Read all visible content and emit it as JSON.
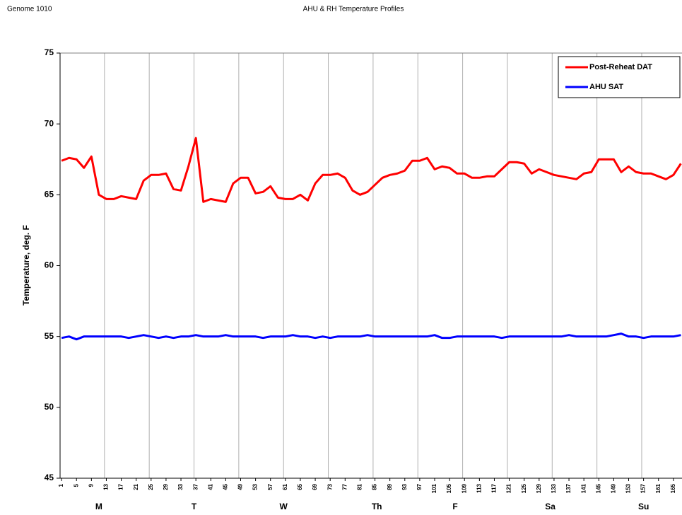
{
  "header": {
    "left": "Genome 1010"
  },
  "chart_data": {
    "type": "line",
    "title": "AHU & RH Temperature Profiles",
    "ylabel": "Temperature, deg. F",
    "x": [
      1,
      3,
      5,
      7,
      9,
      11,
      13,
      15,
      17,
      19,
      21,
      23,
      25,
      27,
      29,
      31,
      33,
      35,
      37,
      39,
      41,
      43,
      45,
      47,
      49,
      51,
      53,
      55,
      57,
      59,
      61,
      63,
      65,
      67,
      69,
      71,
      73,
      75,
      77,
      79,
      81,
      83,
      85,
      87,
      89,
      91,
      93,
      95,
      97,
      99,
      101,
      103,
      105,
      107,
      109,
      111,
      113,
      115,
      117,
      119,
      121,
      123,
      125,
      127,
      129,
      131,
      133,
      135,
      137,
      139,
      141,
      143,
      145,
      147,
      149,
      151,
      153,
      155,
      157,
      159,
      161,
      163,
      165,
      167
    ],
    "series": [
      {
        "name": "Post-Reheat DAT",
        "color": "#ff0000",
        "values": [
          67.4,
          67.6,
          67.5,
          66.9,
          67.7,
          65.0,
          64.7,
          64.7,
          64.9,
          64.8,
          64.7,
          66.0,
          66.4,
          66.4,
          66.5,
          65.4,
          65.3,
          67.0,
          69.0,
          64.5,
          64.7,
          64.6,
          64.5,
          65.8,
          66.2,
          66.2,
          65.1,
          65.2,
          65.6,
          64.8,
          64.7,
          64.7,
          65.0,
          64.6,
          65.8,
          66.4,
          66.4,
          66.5,
          66.2,
          65.3,
          65.0,
          65.2,
          65.7,
          66.2,
          66.4,
          66.5,
          66.7,
          67.4,
          67.4,
          67.6,
          66.8,
          67.0,
          66.9,
          66.5,
          66.5,
          66.2,
          66.2,
          66.3,
          66.3,
          66.8,
          67.3,
          67.3,
          67.2,
          66.5,
          66.8,
          66.6,
          66.4,
          66.3,
          66.2,
          66.1,
          66.5,
          66.6,
          67.5,
          67.5,
          67.5,
          66.6,
          67.0,
          66.6,
          66.5,
          66.5,
          66.3,
          66.1,
          66.4,
          67.2
        ]
      },
      {
        "name": "AHU SAT",
        "color": "#0000ff",
        "values": [
          54.9,
          55.0,
          54.8,
          55.0,
          55.0,
          55.0,
          55.0,
          55.0,
          55.0,
          54.9,
          55.0,
          55.1,
          55.0,
          54.9,
          55.0,
          54.9,
          55.0,
          55.0,
          55.1,
          55.0,
          55.0,
          55.0,
          55.1,
          55.0,
          55.0,
          55.0,
          55.0,
          54.9,
          55.0,
          55.0,
          55.0,
          55.1,
          55.0,
          55.0,
          54.9,
          55.0,
          54.9,
          55.0,
          55.0,
          55.0,
          55.0,
          55.1,
          55.0,
          55.0,
          55.0,
          55.0,
          55.0,
          55.0,
          55.0,
          55.0,
          55.1,
          54.9,
          54.9,
          55.0,
          55.0,
          55.0,
          55.0,
          55.0,
          55.0,
          54.9,
          55.0,
          55.0,
          55.0,
          55.0,
          55.0,
          55.0,
          55.0,
          55.0,
          55.1,
          55.0,
          55.0,
          55.0,
          55.0,
          55.0,
          55.1,
          55.2,
          55.0,
          55.0,
          54.9,
          55.0,
          55.0,
          55.0,
          55.0,
          55.1
        ]
      }
    ],
    "xlim": [
      0.6,
      167.3
    ],
    "xticks": [
      1,
      5,
      9,
      13,
      17,
      21,
      25,
      29,
      33,
      37,
      41,
      45,
      49,
      53,
      57,
      61,
      65,
      69,
      73,
      77,
      81,
      85,
      89,
      93,
      97,
      101,
      105,
      109,
      113,
      117,
      121,
      125,
      129,
      133,
      137,
      141,
      145,
      149,
      153,
      157,
      161,
      165
    ],
    "xgrid": [
      12.5,
      24.5,
      36.5,
      48.5,
      60.5,
      72.5,
      84.5,
      96.5,
      108.5,
      120.5,
      132.5,
      144.5,
      156.5
    ],
    "day_labels": [
      {
        "label": "M",
        "x": 11
      },
      {
        "label": "T",
        "x": 36.5
      },
      {
        "label": "W",
        "x": 60.5
      },
      {
        "label": "Th",
        "x": 85.5
      },
      {
        "label": "F",
        "x": 106.5
      },
      {
        "label": "Sa",
        "x": 132
      },
      {
        "label": "Su",
        "x": 157
      }
    ],
    "ylim": [
      45,
      75
    ],
    "yticks": [
      45,
      50,
      55,
      60,
      65,
      70,
      75
    ],
    "legend": "top-right"
  }
}
